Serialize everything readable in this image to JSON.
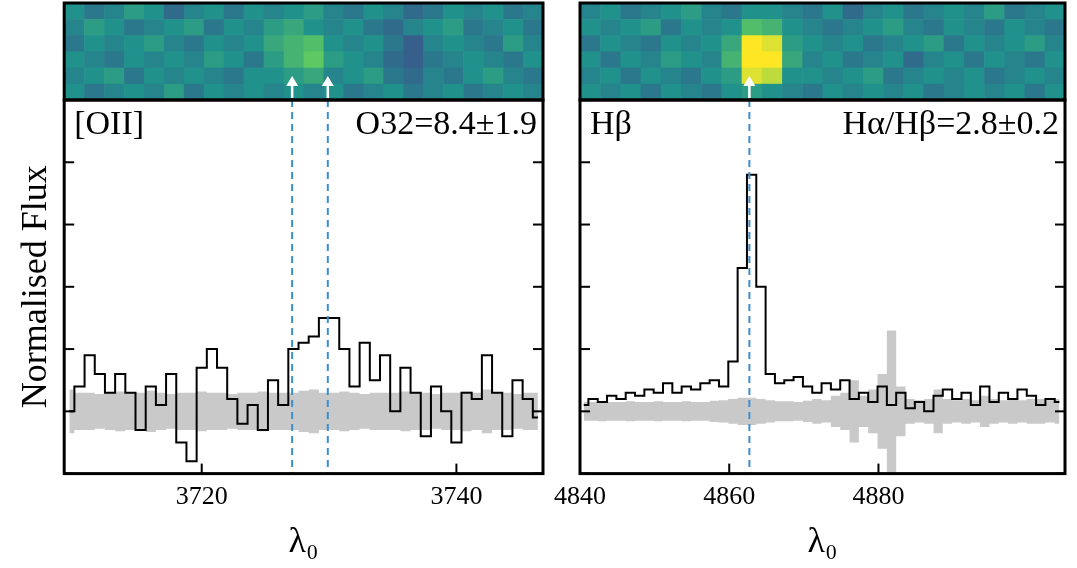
{
  "chart_data": [
    {
      "type": "line",
      "title": "[OII]",
      "annotation": "O32=8.4±1.9",
      "xlabel": "λ₀",
      "ylabel": "Normalised Flux",
      "color": "#000000",
      "tick_labels": "x",
      "xlim": [
        3709.2,
        3746.8
      ],
      "xticks": [
        3720,
        3740
      ],
      "ylim": [
        -1,
        5
      ],
      "yticks": [
        -1,
        0,
        1,
        2,
        3,
        4,
        5
      ],
      "lines": [
        3727.1,
        3729.9
      ],
      "x": [
        3709.6,
        3710.4,
        3711.2,
        3712.0,
        3712.8,
        3713.6,
        3714.4,
        3715.2,
        3716.0,
        3716.8,
        3717.6,
        3718.4,
        3719.2,
        3720.0,
        3720.8,
        3721.6,
        3722.4,
        3723.2,
        3724.0,
        3724.8,
        3725.6,
        3726.4,
        3727.2,
        3728.0,
        3728.8,
        3729.6,
        3730.4,
        3731.2,
        3732.0,
        3732.8,
        3733.6,
        3734.4,
        3735.2,
        3736.0,
        3736.8,
        3737.6,
        3738.4,
        3739.2,
        3740.0,
        3740.8,
        3741.6,
        3742.4,
        3743.2,
        3744.0,
        3744.8,
        3745.6,
        3746.4
      ],
      "values": [
        0.0,
        0.4,
        0.9,
        0.6,
        0.3,
        0.6,
        0.3,
        -0.3,
        0.4,
        0.1,
        0.6,
        -0.5,
        -0.8,
        0.7,
        1.0,
        0.7,
        0.2,
        -0.2,
        0.1,
        -0.3,
        0.5,
        0.1,
        1.0,
        1.1,
        1.2,
        1.5,
        1.5,
        1.0,
        0.4,
        1.1,
        0.5,
        0.9,
        0.0,
        0.7,
        0.3,
        -0.4,
        0.4,
        0.0,
        -0.5,
        0.3,
        0.2,
        0.9,
        0.3,
        -0.4,
        0.5,
        0.2,
        -0.1
      ],
      "sigma": [
        0.35,
        0.3,
        0.3,
        0.28,
        0.3,
        0.32,
        0.3,
        0.3,
        0.33,
        0.3,
        0.28,
        0.3,
        0.3,
        0.32,
        0.3,
        0.3,
        0.28,
        0.3,
        0.3,
        0.32,
        0.3,
        0.3,
        0.3,
        0.33,
        0.35,
        0.3,
        0.3,
        0.32,
        0.3,
        0.28,
        0.3,
        0.3,
        0.3,
        0.32,
        0.3,
        0.3,
        0.28,
        0.3,
        0.3,
        0.32,
        0.3,
        0.35,
        0.3,
        0.3,
        0.28,
        0.3,
        0.3
      ],
      "image_lim": [
        0,
        1
      ],
      "image": [
        [
          0.5,
          0.4,
          0.45,
          0.55,
          0.5,
          0.35,
          0.45,
          0.5,
          0.4,
          0.5,
          0.45,
          0.5,
          0.55,
          0.45,
          0.4,
          0.5,
          0.45,
          0.35,
          0.4,
          0.5,
          0.45,
          0.5,
          0.4,
          0.45
        ],
        [
          0.45,
          0.55,
          0.5,
          0.4,
          0.45,
          0.5,
          0.55,
          0.4,
          0.5,
          0.45,
          0.55,
          0.6,
          0.5,
          0.45,
          0.5,
          0.4,
          0.35,
          0.45,
          0.5,
          0.55,
          0.4,
          0.45,
          0.5,
          0.4
        ],
        [
          0.4,
          0.5,
          0.45,
          0.5,
          0.55,
          0.45,
          0.4,
          0.5,
          0.45,
          0.5,
          0.6,
          0.65,
          0.7,
          0.5,
          0.45,
          0.5,
          0.4,
          0.3,
          0.45,
          0.5,
          0.45,
          0.4,
          0.55,
          0.45
        ],
        [
          0.5,
          0.45,
          0.4,
          0.5,
          0.45,
          0.5,
          0.45,
          0.55,
          0.5,
          0.4,
          0.55,
          0.65,
          0.75,
          0.55,
          0.5,
          0.45,
          0.35,
          0.3,
          0.4,
          0.45,
          0.5,
          0.45,
          0.4,
          0.5
        ],
        [
          0.45,
          0.5,
          0.55,
          0.4,
          0.5,
          0.45,
          0.5,
          0.45,
          0.4,
          0.5,
          0.5,
          0.55,
          0.6,
          0.45,
          0.5,
          0.55,
          0.4,
          0.35,
          0.45,
          0.4,
          0.5,
          0.55,
          0.45,
          0.4
        ],
        [
          0.5,
          0.4,
          0.45,
          0.5,
          0.45,
          0.55,
          0.4,
          0.5,
          0.45,
          0.5,
          0.45,
          0.5,
          0.45,
          0.5,
          0.4,
          0.45,
          0.5,
          0.4,
          0.45,
          0.5,
          0.4,
          0.45,
          0.5,
          0.45
        ]
      ]
    },
    {
      "type": "line",
      "title": "Hβ",
      "annotation": "Hα/Hβ=2.8±0.2",
      "xlabel": "λ₀",
      "color": "#000000",
      "tick_labels": "x",
      "xlim": [
        4840,
        4905
      ],
      "xticks": [
        4840,
        4860,
        4880
      ],
      "ylim": [
        -1,
        5
      ],
      "yticks": [
        -1,
        0,
        1,
        2,
        3,
        4,
        5
      ],
      "lines": [
        4862.7
      ],
      "x": [
        4840.5,
        4841.75,
        4843.0,
        4844.25,
        4845.5,
        4846.75,
        4848.0,
        4849.25,
        4850.5,
        4851.75,
        4853.0,
        4854.25,
        4855.5,
        4856.75,
        4858.0,
        4859.25,
        4860.5,
        4861.75,
        4863.0,
        4864.25,
        4865.5,
        4866.75,
        4868.0,
        4869.25,
        4870.5,
        4871.75,
        4873.0,
        4874.25,
        4875.5,
        4876.75,
        4878.0,
        4879.25,
        4880.5,
        4881.75,
        4883.0,
        4884.25,
        4885.5,
        4886.75,
        4888.0,
        4889.25,
        4890.5,
        4891.75,
        4893.0,
        4894.25,
        4895.5,
        4896.75,
        4898.0,
        4899.25,
        4900.5,
        4901.75,
        4903.0,
        4904.25
      ],
      "values": [
        0.1,
        0.2,
        0.15,
        0.25,
        0.2,
        0.3,
        0.25,
        0.35,
        0.3,
        0.45,
        0.3,
        0.4,
        0.35,
        0.45,
        0.5,
        0.4,
        0.8,
        2.3,
        3.8,
        2.0,
        0.6,
        0.45,
        0.5,
        0.55,
        0.4,
        0.3,
        0.45,
        0.35,
        0.5,
        0.2,
        0.3,
        0.15,
        0.4,
        0.1,
        0.3,
        0.05,
        0.15,
        0.0,
        0.25,
        0.35,
        0.2,
        0.3,
        0.1,
        0.4,
        0.15,
        0.3,
        0.2,
        0.35,
        0.25,
        0.1,
        0.2,
        0.15
      ],
      "sigma": [
        0.15,
        0.15,
        0.16,
        0.15,
        0.15,
        0.16,
        0.15,
        0.15,
        0.16,
        0.15,
        0.15,
        0.16,
        0.15,
        0.15,
        0.17,
        0.18,
        0.2,
        0.22,
        0.22,
        0.2,
        0.18,
        0.16,
        0.16,
        0.15,
        0.17,
        0.2,
        0.18,
        0.25,
        0.3,
        0.5,
        0.25,
        0.35,
        0.6,
        1.3,
        0.4,
        0.2,
        0.18,
        0.2,
        0.35,
        0.2,
        0.18,
        0.2,
        0.18,
        0.25,
        0.2,
        0.18,
        0.2,
        0.18,
        0.2,
        0.2,
        0.18,
        0.2
      ],
      "image_lim": [
        0,
        1
      ],
      "image": [
        [
          0.45,
          0.5,
          0.4,
          0.45,
          0.5,
          0.55,
          0.45,
          0.4,
          0.5,
          0.5,
          0.45,
          0.4,
          0.5,
          0.35,
          0.45,
          0.5,
          0.4,
          0.45,
          0.5,
          0.45,
          0.55,
          0.4,
          0.45,
          0.5
        ],
        [
          0.5,
          0.45,
          0.5,
          0.55,
          0.4,
          0.5,
          0.45,
          0.5,
          0.7,
          0.65,
          0.5,
          0.45,
          0.4,
          0.45,
          0.5,
          0.55,
          0.45,
          0.4,
          0.5,
          0.45,
          0.4,
          0.5,
          0.45,
          0.4
        ],
        [
          0.4,
          0.5,
          0.45,
          0.4,
          0.5,
          0.45,
          0.5,
          0.6,
          1.0,
          0.95,
          0.55,
          0.5,
          0.45,
          0.5,
          0.4,
          0.45,
          0.5,
          0.55,
          0.4,
          0.5,
          0.45,
          0.5,
          0.55,
          0.45
        ],
        [
          0.5,
          0.4,
          0.5,
          0.45,
          0.55,
          0.5,
          0.45,
          0.65,
          1.0,
          1.0,
          0.6,
          0.45,
          0.5,
          0.4,
          0.45,
          0.5,
          0.35,
          0.45,
          0.5,
          0.4,
          0.5,
          0.45,
          0.4,
          0.5
        ],
        [
          0.45,
          0.5,
          0.4,
          0.5,
          0.45,
          0.4,
          0.5,
          0.55,
          0.95,
          0.9,
          0.5,
          0.5,
          0.45,
          0.5,
          0.55,
          0.4,
          0.45,
          0.5,
          0.45,
          0.5,
          0.4,
          0.45,
          0.5,
          0.45
        ],
        [
          0.5,
          0.45,
          0.5,
          0.4,
          0.5,
          0.45,
          0.4,
          0.5,
          0.55,
          0.5,
          0.45,
          0.4,
          0.5,
          0.45,
          0.5,
          0.45,
          0.5,
          0.4,
          0.45,
          0.5,
          0.45,
          0.5,
          0.4,
          0.5
        ]
      ]
    }
  ]
}
